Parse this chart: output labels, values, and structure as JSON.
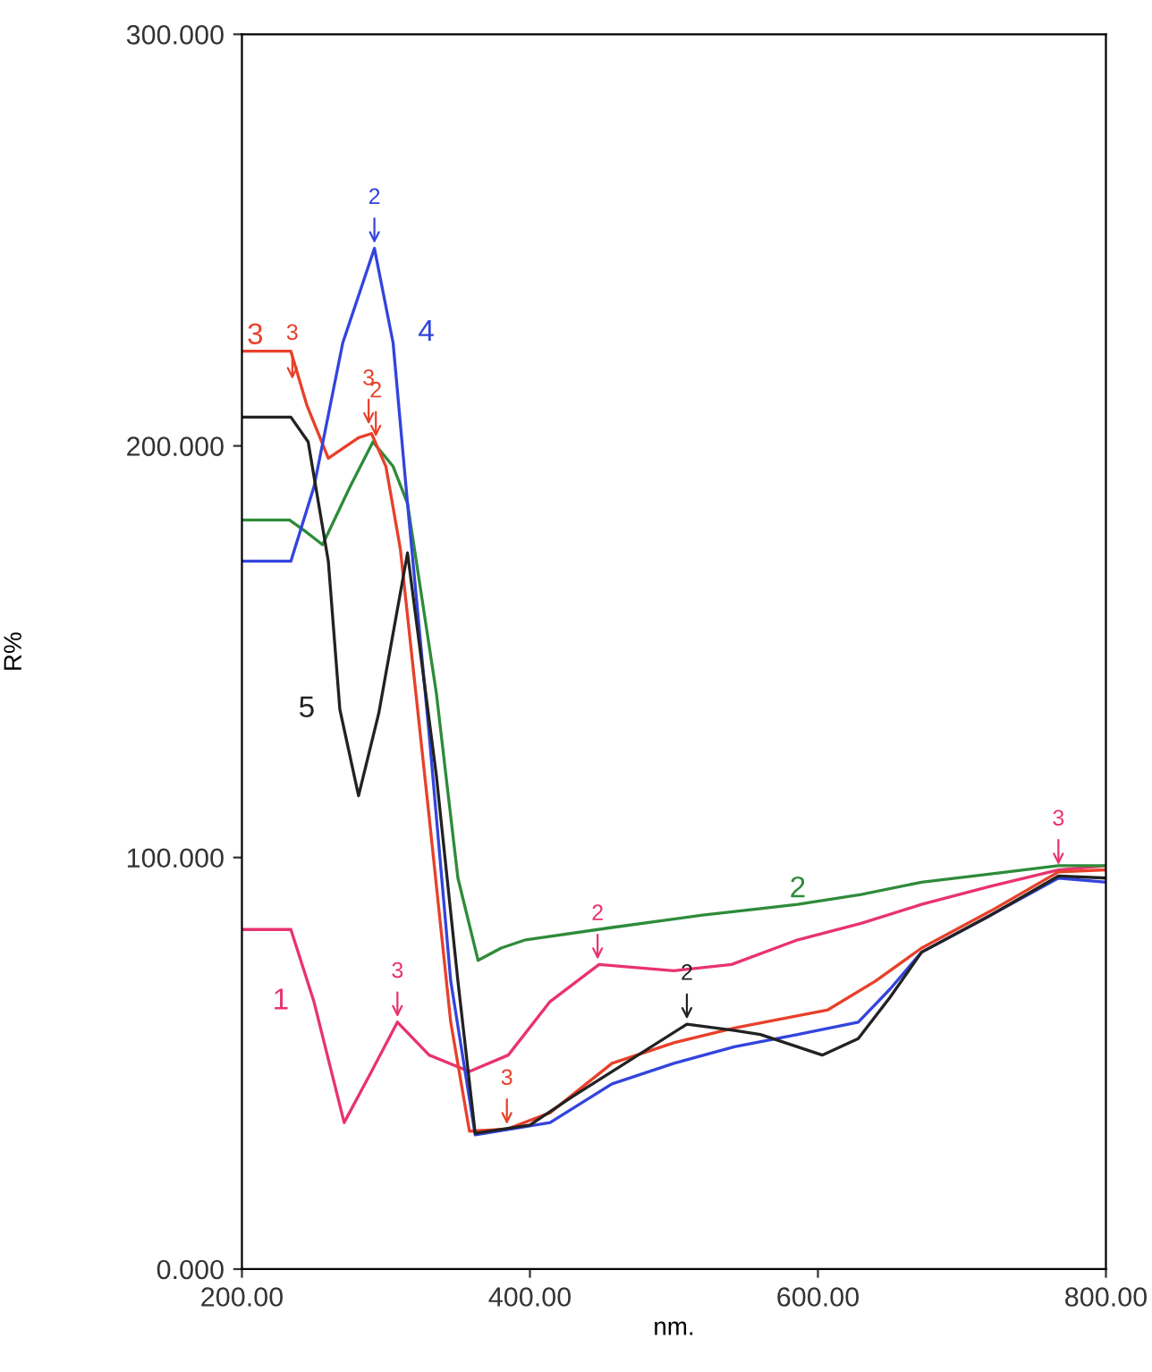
{
  "chart_data": {
    "type": "line",
    "xlabel": "nm.",
    "ylabel": "R%",
    "xlim": [
      200,
      800
    ],
    "ylim": [
      0,
      300
    ],
    "xticks": [
      {
        "value": 200,
        "label": "200.00"
      },
      {
        "value": 400,
        "label": "400.00"
      },
      {
        "value": 600,
        "label": "600.00"
      },
      {
        "value": 800,
        "label": "800.00"
      }
    ],
    "yticks": [
      {
        "value": 0,
        "label": "0.000"
      },
      {
        "value": 100,
        "label": "100.000"
      },
      {
        "value": 200,
        "label": "200.000"
      },
      {
        "value": 300,
        "label": "300.000"
      }
    ],
    "grid": false,
    "legend": false,
    "marker": "none",
    "line_style": "solid",
    "series": [
      {
        "name": "1",
        "color": "#e8336e",
        "x": [
          200,
          234,
          250,
          271,
          290,
          308,
          330,
          358,
          385,
          414,
          448,
          500,
          540,
          586,
          630,
          672,
          720,
          767,
          800
        ],
        "values": [
          82.5,
          82.5,
          65,
          35.6,
          48,
          60,
          52,
          48,
          52,
          65,
          74,
          72.5,
          74,
          80,
          84,
          88.6,
          93,
          97,
          98
        ]
      },
      {
        "name": "2",
        "color": "#2e8b3a",
        "x": [
          200,
          233,
          245,
          256,
          275,
          291,
          305,
          315,
          335,
          350,
          364,
          380,
          397,
          457,
          520,
          586,
          630,
          672,
          720,
          767,
          800
        ],
        "values": [
          182,
          182,
          179,
          176,
          190,
          201,
          195,
          186,
          140,
          95,
          75,
          78,
          80,
          83,
          86,
          88.6,
          91,
          94,
          96,
          98,
          98
        ]
      },
      {
        "name": "3",
        "color": "#e8402a",
        "x": [
          200,
          234,
          245,
          260,
          281,
          290,
          300,
          310,
          330,
          345,
          358,
          384,
          414,
          457,
          500,
          542,
          607,
          640,
          672,
          720,
          767,
          800
        ],
        "values": [
          223,
          223,
          210,
          197,
          202,
          203,
          195,
          175,
          110,
          60,
          33.5,
          34,
          38,
          50,
          55,
          58.6,
          63,
          70,
          78,
          87,
          96.5,
          97
        ]
      },
      {
        "name": "4",
        "color": "#3344dd",
        "x": [
          200,
          234,
          250,
          270,
          292,
          305,
          315,
          330,
          345,
          362,
          414,
          457,
          500,
          542,
          586,
          628,
          650,
          672,
          720,
          767,
          800
        ],
        "values": [
          172,
          172,
          190,
          225,
          248,
          225,
          186,
          130,
          70,
          32.6,
          35.6,
          45,
          50,
          54,
          57,
          60,
          68,
          77,
          86,
          95,
          94
        ]
      },
      {
        "name": "5",
        "color": "#222222",
        "x": [
          200,
          234,
          246,
          260,
          268,
          281,
          295,
          315,
          335,
          350,
          362,
          400,
          430,
          457,
          509,
          542,
          560,
          603,
          628,
          650,
          672,
          720,
          767,
          800
        ],
        "values": [
          207,
          207,
          201,
          172,
          136,
          115,
          135,
          174,
          120,
          70,
          33,
          35,
          42,
          48,
          59.5,
          58,
          57,
          52,
          56,
          66,
          77,
          86,
          95.5,
          95
        ]
      }
    ],
    "annotations": [
      {
        "text": "2",
        "x": 292,
        "y": 248
      },
      {
        "text": "3",
        "x": 235,
        "y": 215
      },
      {
        "text": "3",
        "x": 288,
        "y": 204
      },
      {
        "text": "2",
        "x": 293,
        "y": 201
      },
      {
        "text": "3",
        "x": 308,
        "y": 60
      },
      {
        "text": "3",
        "x": 384,
        "y": 34
      },
      {
        "text": "2",
        "x": 447,
        "y": 74
      },
      {
        "text": "2",
        "x": 509,
        "y": 59.5
      },
      {
        "text": "3",
        "x": 767,
        "y": 97
      }
    ]
  }
}
